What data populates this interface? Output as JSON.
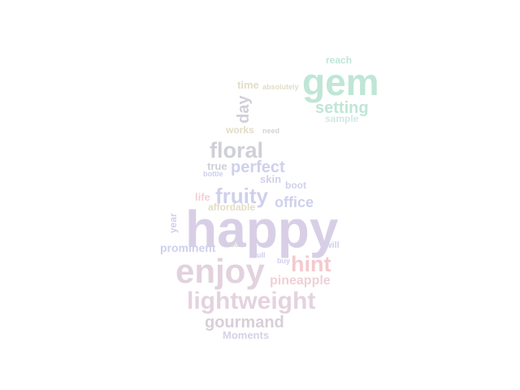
{
  "word_cloud": {
    "words": [
      {
        "text": "happy",
        "color": "#d8cfe6"
      },
      {
        "text": "gem",
        "color": "#bfe6d6"
      },
      {
        "text": "enjoy",
        "color": "#e2d2de"
      },
      {
        "text": "lightweight",
        "color": "#e4d3de"
      },
      {
        "text": "hint",
        "color": "#f4c9cf"
      },
      {
        "text": "floral",
        "color": "#cfcfd8"
      },
      {
        "text": "fruity",
        "color": "#cfd0ec"
      },
      {
        "text": "perfect",
        "color": "#cfd0ec"
      },
      {
        "text": "gourmand",
        "color": "#d8cfd8"
      },
      {
        "text": "setting",
        "color": "#bfe6d6"
      },
      {
        "text": "office",
        "color": "#cfd0ec"
      },
      {
        "text": "pineapple",
        "color": "#f0d0d8"
      },
      {
        "text": "day",
        "color": "#cfd0d8"
      },
      {
        "text": "prominent",
        "color": "#cfd0ec"
      },
      {
        "text": "Moments",
        "color": "#d8d0e6"
      },
      {
        "text": "reach",
        "color": "#bfe6d6"
      },
      {
        "text": "time",
        "color": "#e3dcc6"
      },
      {
        "text": "works",
        "color": "#e3dcc6"
      },
      {
        "text": "sample",
        "color": "#cfe9e6"
      },
      {
        "text": "true",
        "color": "#cfcfd8"
      },
      {
        "text": "skin",
        "color": "#cfd0ec"
      },
      {
        "text": "boot",
        "color": "#cfd0ec"
      },
      {
        "text": "life",
        "color": "#f4cfd6"
      },
      {
        "text": "affordable",
        "color": "#e3dcc6"
      },
      {
        "text": "year",
        "color": "#cfd0ec"
      },
      {
        "text": "will",
        "color": "#cfd0ec"
      },
      {
        "text": "absolutely",
        "color": "#e3dcc6"
      },
      {
        "text": "need",
        "color": "#d4d4d4"
      },
      {
        "text": "bottle",
        "color": "#cfd0ec"
      },
      {
        "text": "soon",
        "color": "#d4d4d4"
      },
      {
        "text": "full",
        "color": "#cfd0ec"
      },
      {
        "text": "buy",
        "color": "#cfd0ec"
      }
    ]
  }
}
